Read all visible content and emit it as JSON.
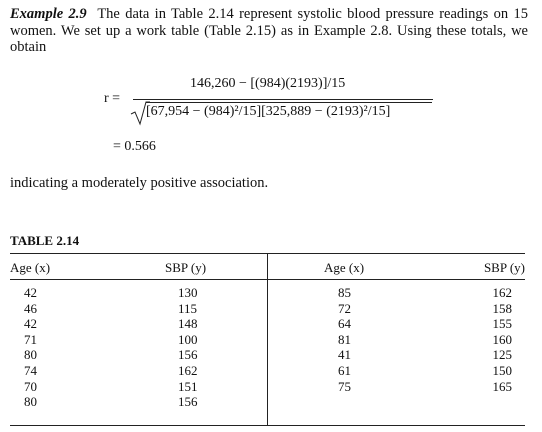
{
  "example": {
    "label": "Example 2.9",
    "text": "The data in Table 2.14 represent systolic blood pressure readings on 15 women. We set up a work table (Table 2.15) as in Example 2.8. Using these totals, we obtain"
  },
  "formula": {
    "lhs": "r =",
    "numerator": "146,260 − [(984)(2193)]/15",
    "denominator": "[67,954 − (984)²/15][325,889 − (2193)²/15]",
    "result": "= 0.566"
  },
  "conclusion": "indicating a moderately positive association.",
  "table": {
    "title": "TABLE 2.14",
    "headers": [
      "Age (x)",
      "SBP (y)",
      "Age (x)",
      "SBP (y)"
    ],
    "rows": [
      [
        42,
        130,
        85,
        162
      ],
      [
        46,
        115,
        72,
        158
      ],
      [
        42,
        148,
        64,
        155
      ],
      [
        71,
        100,
        81,
        160
      ],
      [
        80,
        156,
        41,
        125
      ],
      [
        74,
        162,
        61,
        150
      ],
      [
        70,
        151,
        75,
        165
      ],
      [
        80,
        156
      ]
    ]
  }
}
